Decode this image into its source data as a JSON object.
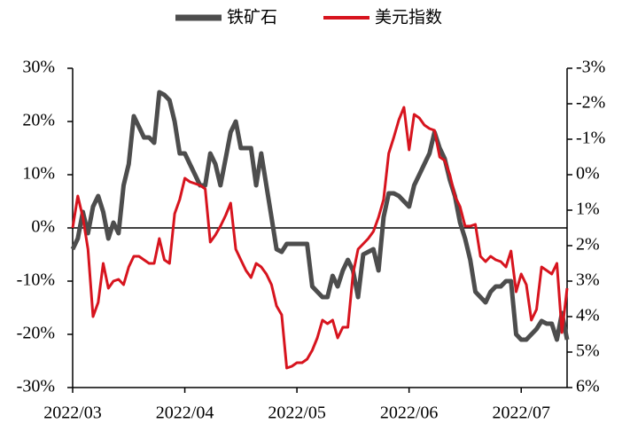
{
  "chart_data": {
    "type": "line",
    "categories": [
      "2022/03",
      null,
      null,
      null,
      null,
      null,
      null,
      null,
      null,
      null,
      null,
      null,
      null,
      null,
      null,
      null,
      null,
      null,
      null,
      null,
      null,
      null,
      "2022/04",
      null,
      null,
      null,
      null,
      null,
      null,
      null,
      null,
      null,
      null,
      null,
      null,
      null,
      null,
      null,
      null,
      null,
      null,
      null,
      null,
      null,
      "2022/05",
      null,
      null,
      null,
      null,
      null,
      null,
      null,
      null,
      null,
      null,
      null,
      null,
      null,
      null,
      null,
      null,
      null,
      null,
      null,
      null,
      null,
      "2022/06",
      null,
      null,
      null,
      null,
      null,
      null,
      null,
      null,
      null,
      null,
      null,
      null,
      null,
      null,
      null,
      null,
      null,
      null,
      null,
      null,
      null,
      "2022/07",
      null,
      null,
      null,
      null,
      null,
      null,
      null,
      null,
      null
    ],
    "series": [
      {
        "name": "铁矿石",
        "color": "#4d4d4d",
        "axis": "y",
        "values": [
          -4,
          -2,
          3,
          -1,
          4,
          6,
          3,
          -2,
          1,
          -1,
          8,
          12,
          21,
          19,
          17,
          17,
          16,
          25.5,
          25,
          24,
          20,
          14,
          14,
          12,
          10,
          8,
          8,
          14,
          12,
          8,
          13,
          18,
          20,
          15,
          15,
          15,
          8,
          14,
          8,
          2,
          -4,
          -4.5,
          -3,
          -3,
          -3,
          -3,
          -3,
          -11,
          -12,
          -13,
          -13,
          -9,
          -11,
          -8,
          -6,
          -8,
          -13,
          -5,
          -4.5,
          -4,
          -8,
          2,
          6.5,
          6.5,
          6,
          5,
          4,
          8,
          10,
          12,
          14,
          18,
          15,
          13,
          9,
          6,
          1,
          -2,
          -6,
          -12,
          -13,
          -14,
          -12,
          -11,
          -11,
          -10,
          -10,
          -20,
          -21,
          -21,
          -20,
          -19,
          -17.5,
          -18,
          -18,
          -21,
          -16,
          -21
        ]
      },
      {
        "name": "美元指数",
        "color": "#d7141e",
        "axis": "y2",
        "values": [
          1.5,
          0.6,
          1.2,
          2.1,
          4.0,
          3.6,
          2.5,
          3.2,
          3.0,
          2.95,
          3.1,
          2.6,
          2.3,
          2.3,
          2.4,
          2.5,
          2.5,
          1.8,
          2.4,
          2.5,
          1.1,
          0.7,
          0.1,
          0.2,
          0.25,
          0.3,
          0.4,
          1.9,
          1.7,
          1.45,
          1.15,
          0.8,
          2.1,
          2.4,
          2.7,
          2.9,
          2.5,
          2.6,
          2.8,
          3.1,
          3.7,
          3.95,
          5.45,
          5.4,
          5.3,
          5.3,
          5.2,
          4.95,
          4.6,
          4.1,
          4.2,
          4.1,
          4.6,
          4.3,
          4.3,
          2.8,
          2.1,
          1.95,
          1.8,
          1.6,
          1.2,
          0.7,
          -0.6,
          -1.05,
          -1.55,
          -1.9,
          -0.7,
          -1.7,
          -1.6,
          -1.4,
          -1.3,
          -1.25,
          -0.5,
          -0.4,
          0,
          0.6,
          0.9,
          1.45,
          1.45,
          1.4,
          2.3,
          2.45,
          2.3,
          2.4,
          2.45,
          2.6,
          2.15,
          3.3,
          2.8,
          3.1,
          4.1,
          3.8,
          2.6,
          2.7,
          2.8,
          2.5,
          4.45,
          3.2
        ]
      }
    ],
    "ylim": [
      -30,
      30
    ],
    "yticks": [
      {
        "value": 30,
        "label": "30%"
      },
      {
        "value": 20,
        "label": "20%"
      },
      {
        "value": 10,
        "label": "10%"
      },
      {
        "value": 0,
        "label": "0%"
      },
      {
        "value": -10,
        "label": "-10%"
      },
      {
        "value": -20,
        "label": "-20%"
      },
      {
        "value": -30,
        "label": "-30%"
      }
    ],
    "y2lim": [
      6,
      -3
    ],
    "y2ticks": [
      {
        "value": -3,
        "label": "-3%"
      },
      {
        "value": -2,
        "label": "-2%"
      },
      {
        "value": -1,
        "label": "-1%"
      },
      {
        "value": 0,
        "label": "0%"
      },
      {
        "value": 1,
        "label": "1%"
      },
      {
        "value": 2,
        "label": "2%"
      },
      {
        "value": 3,
        "label": "3%"
      },
      {
        "value": 4,
        "label": "4%"
      },
      {
        "value": 5,
        "label": "5%"
      },
      {
        "value": 6,
        "label": "6%"
      }
    ],
    "legend": "top"
  }
}
